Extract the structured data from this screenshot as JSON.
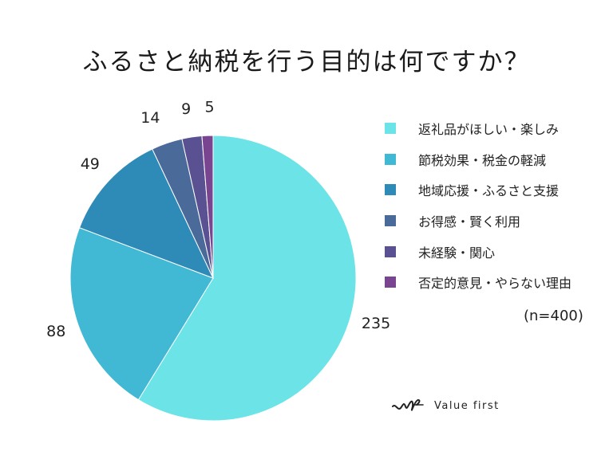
{
  "chart_data": {
    "type": "pie",
    "title": "ふるさと納税を行う目的は何ですか？",
    "categories": [
      "返礼品がほしい・楽しみ",
      "節税効果・税金の軽減",
      "地域応援・ふるさと支援",
      "お得感・賢く利用",
      "未経験・関心",
      "否定的意見・やらない理由"
    ],
    "values": [
      235,
      88,
      49,
      14,
      9,
      5
    ],
    "labels": [
      "235",
      "88",
      "49",
      "14",
      "9",
      "5"
    ],
    "colors": [
      "#6be3e7",
      "#41b8d4",
      "#2e8bb8",
      "#4a6a9a",
      "#5a5192",
      "#7a4590"
    ],
    "start": "12 o'clock",
    "direction": "clockwise",
    "legend_position": "right",
    "note": "(n=400)"
  },
  "brand": {
    "name": "Value first"
  }
}
